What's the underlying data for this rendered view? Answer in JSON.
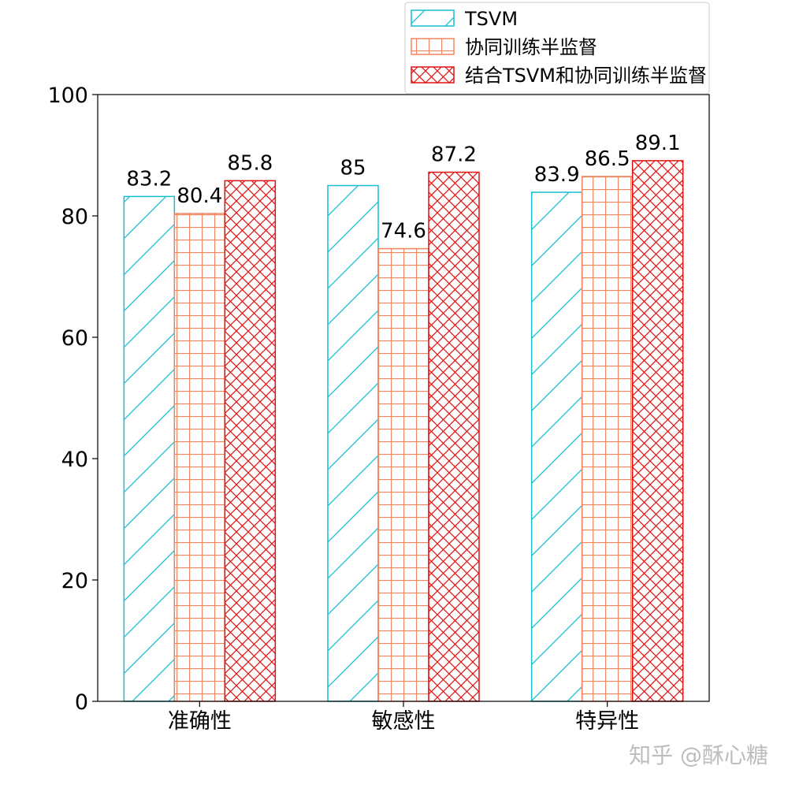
{
  "chart_data": {
    "type": "bar",
    "categories": [
      "准确性",
      "敏感性",
      "特异性"
    ],
    "series": [
      {
        "name": "TSVM",
        "values": [
          83.2,
          85,
          83.9
        ],
        "color": "#17becf",
        "hatch": "diagonal"
      },
      {
        "name": "协同训练半监督",
        "values": [
          80.4,
          74.6,
          86.5
        ],
        "color": "#f4845f",
        "hatch": "grid"
      },
      {
        "name": "结合TSVM和协同训练半监督",
        "values": [
          85.8,
          87.2,
          89.1
        ],
        "color": "#e01010",
        "hatch": "crosshatch"
      }
    ],
    "data_labels": [
      [
        "83.2",
        "85",
        "83.9"
      ],
      [
        "80.4",
        "74.6",
        "86.5"
      ],
      [
        "85.8",
        "87.2",
        "89.1"
      ]
    ],
    "ylim": [
      0,
      100
    ],
    "yticks": [
      "0",
      "20",
      "40",
      "60",
      "80",
      "100"
    ],
    "grid": false,
    "legend_position": "top-right"
  },
  "watermark": "知乎 @酥心糖"
}
